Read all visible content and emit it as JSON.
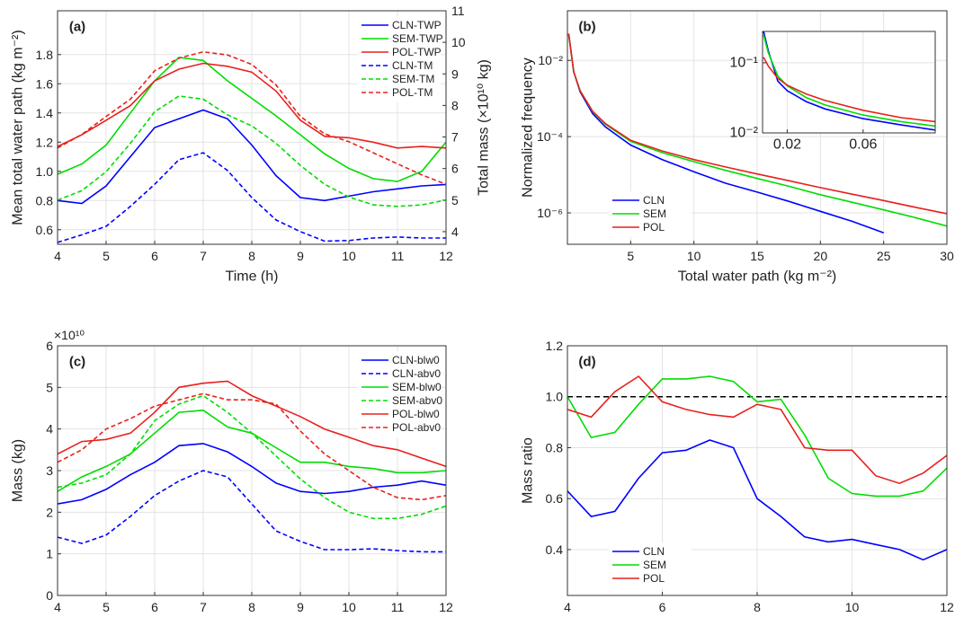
{
  "chart_data": [
    {
      "type": "line",
      "panel_label": "(a)",
      "xlabel": "Time (h)",
      "ylabel": "Mean total water path (kg m⁻²)",
      "y2label": "Total mass (×10¹⁰ kg)",
      "x": [
        4,
        4.5,
        5,
        5.5,
        6,
        6.5,
        7,
        7.5,
        8,
        8.5,
        9,
        9.5,
        10,
        10.5,
        11,
        11.5,
        12
      ],
      "xlim": [
        4,
        12
      ],
      "xticks": [
        4,
        5,
        6,
        7,
        8,
        9,
        10,
        11,
        12
      ],
      "ylim": [
        0.5,
        2.1
      ],
      "yticks": [
        0.6,
        0.8,
        {
          "value": 1,
          "label": "1.0"
        },
        1.2,
        1.4,
        1.6,
        1.8
      ],
      "y2lim": [
        3.6,
        11
      ],
      "y2ticks": [
        4,
        5,
        6,
        7,
        8,
        9,
        10,
        11
      ],
      "grid": true,
      "legend": "upper right",
      "series": [
        {
          "name": "CLN-TWP",
          "color": "#0000ff",
          "style": "solid",
          "values": [
            0.8,
            0.78,
            0.9,
            1.1,
            1.3,
            1.36,
            1.42,
            1.36,
            1.18,
            0.97,
            0.82,
            0.8,
            0.83,
            0.86,
            0.88,
            0.9,
            0.91
          ]
        },
        {
          "name": "SEM-TWP",
          "color": "#00dd00",
          "style": "solid",
          "values": [
            0.98,
            1.05,
            1.18,
            1.4,
            1.62,
            1.78,
            1.76,
            1.62,
            1.5,
            1.38,
            1.25,
            1.12,
            1.02,
            0.95,
            0.93,
            1.0,
            1.2
          ]
        },
        {
          "name": "POL-TWP",
          "color": "#e8201c",
          "style": "solid",
          "values": [
            1.17,
            1.25,
            1.35,
            1.45,
            1.62,
            1.7,
            1.74,
            1.72,
            1.68,
            1.55,
            1.35,
            1.24,
            1.23,
            1.2,
            1.16,
            1.17,
            1.16
          ]
        },
        {
          "name": "CLN-TM",
          "color": "#0000ff",
          "style": "dashed",
          "axis": "y2",
          "values": [
            3.66,
            3.9,
            4.17,
            4.8,
            5.5,
            6.28,
            6.5,
            5.94,
            5.08,
            4.37,
            4.0,
            3.7,
            3.72,
            3.8,
            3.83,
            3.8,
            3.8
          ]
        },
        {
          "name": "SEM-TM",
          "color": "#00dd00",
          "style": "dashed",
          "axis": "y2",
          "values": [
            5.0,
            5.3,
            5.9,
            6.8,
            7.8,
            8.3,
            8.2,
            7.7,
            7.35,
            6.8,
            6.1,
            5.5,
            5.1,
            4.85,
            4.8,
            4.85,
            5.0
          ]
        },
        {
          "name": "POL-TM",
          "color": "#e8201c",
          "style": "dashed",
          "axis": "y2",
          "values": [
            6.65,
            7.08,
            7.65,
            8.2,
            9.1,
            9.5,
            9.7,
            9.6,
            9.3,
            8.65,
            7.65,
            7.1,
            6.85,
            6.5,
            6.15,
            5.8,
            5.5
          ]
        }
      ]
    },
    {
      "type": "line",
      "panel_label": "(b)",
      "xlabel": "Total water path (kg m⁻²)",
      "ylabel": "Normalized frequency",
      "x": [
        0.1,
        0.5,
        1,
        2,
        3,
        5,
        7.5,
        10,
        12.5,
        15,
        17.5,
        20,
        22.5,
        25,
        27.5,
        30
      ],
      "xlim": [
        0,
        30
      ],
      "xticks": [
        5,
        10,
        15,
        20,
        25,
        30
      ],
      "ylog": true,
      "ylim": [
        1.5e-07,
        0.2
      ],
      "yticks": [
        {
          "value": 1e-06,
          "label": "10⁻⁶"
        },
        {
          "value": 0.0001,
          "label": "10⁻⁴"
        },
        {
          "value": 0.01,
          "label": "10⁻²"
        }
      ],
      "grid": true,
      "legend": "lower left",
      "series": [
        {
          "name": "CLN",
          "color": "#0000ff",
          "style": "solid",
          "values": [
            0.05,
            0.005,
            0.0015,
            0.0004,
            0.00018,
            6e-05,
            2.5e-05,
            1.2e-05,
            6e-06,
            3.5e-06,
            2e-06,
            1.1e-06,
            6e-07,
            3e-07,
            null,
            null
          ]
        },
        {
          "name": "SEM",
          "color": "#00dd00",
          "style": "solid",
          "values": [
            0.05,
            0.005,
            0.0016,
            0.00045,
            0.00021,
            7.5e-05,
            3.8e-05,
            2.2e-05,
            1.3e-05,
            8e-06,
            5e-06,
            3e-06,
            1.9e-06,
            1.2e-06,
            7.5e-07,
            4.5e-07
          ]
        },
        {
          "name": "POL",
          "color": "#e8201c",
          "style": "solid",
          "values": [
            0.05,
            0.005,
            0.0016,
            0.00046,
            0.00022,
            8e-05,
            4.2e-05,
            2.5e-05,
            1.6e-05,
            1.05e-05,
            7e-06,
            4.6e-06,
            3.1e-06,
            2.1e-06,
            1.4e-06,
            9.5e-07
          ]
        }
      ],
      "inset": {
        "type": "line",
        "x": [
          0.0075,
          0.01,
          0.015,
          0.02,
          0.03,
          0.04,
          0.06,
          0.08,
          0.098
        ],
        "xlim": [
          0.007,
          0.098
        ],
        "xticks": [
          0.02,
          0.06
        ],
        "ylog": true,
        "ylim": [
          0.01,
          0.28
        ],
        "yticks": [
          {
            "value": 0.01,
            "label": "10⁻²"
          },
          {
            "value": 0.1,
            "label": "10⁻¹"
          }
        ],
        "grid": true,
        "series": [
          {
            "color": "#0000ff",
            "style": "solid",
            "values": [
              0.28,
              0.15,
              0.055,
              0.04,
              0.028,
              0.022,
              0.016,
              0.013,
              0.011
            ]
          },
          {
            "color": "#00dd00",
            "style": "solid",
            "values": [
              0.25,
              0.14,
              0.065,
              0.047,
              0.032,
              0.025,
              0.018,
              0.0145,
              0.0125
            ]
          },
          {
            "color": "#e8201c",
            "style": "solid",
            "values": [
              0.12,
              0.09,
              0.06,
              0.048,
              0.036,
              0.029,
              0.021,
              0.0165,
              0.0145
            ]
          }
        ]
      }
    },
    {
      "type": "line",
      "panel_label": "(c)",
      "xlabel": "Time (h)",
      "ylabel": "Mass (kg)",
      "y_multiplier": "×10¹⁰",
      "x": [
        4,
        4.5,
        5,
        5.5,
        6,
        6.5,
        7,
        7.5,
        8,
        8.5,
        9,
        9.5,
        10,
        10.5,
        11,
        11.5,
        12
      ],
      "xlim": [
        4,
        12
      ],
      "xticks": [
        4,
        5,
        6,
        7,
        8,
        9,
        10,
        11,
        12
      ],
      "ylim": [
        0,
        6
      ],
      "yticks": [
        0,
        1,
        2,
        3,
        4,
        5,
        6
      ],
      "grid": true,
      "legend": "upper right",
      "series": [
        {
          "name": "CLN-blw0",
          "color": "#0000ff",
          "style": "solid",
          "values": [
            2.2,
            2.3,
            2.55,
            2.9,
            3.2,
            3.6,
            3.65,
            3.45,
            3.1,
            2.7,
            2.5,
            2.45,
            2.5,
            2.6,
            2.65,
            2.75,
            2.65
          ]
        },
        {
          "name": "CLN-abv0",
          "color": "#0000ff",
          "style": "dashed",
          "values": [
            1.4,
            1.25,
            1.45,
            1.9,
            2.4,
            2.75,
            3.0,
            2.85,
            2.2,
            1.55,
            1.3,
            1.1,
            1.1,
            1.12,
            1.08,
            1.05,
            1.05
          ]
        },
        {
          "name": "SEM-blw0",
          "color": "#00dd00",
          "style": "solid",
          "values": [
            2.5,
            2.85,
            3.1,
            3.4,
            3.9,
            4.4,
            4.45,
            4.05,
            3.9,
            3.55,
            3.2,
            3.2,
            3.1,
            3.05,
            2.95,
            2.95,
            3.0
          ]
        },
        {
          "name": "SEM-abv0",
          "color": "#00dd00",
          "style": "dashed",
          "values": [
            2.6,
            2.7,
            2.9,
            3.4,
            4.2,
            4.6,
            4.8,
            4.4,
            3.9,
            3.35,
            2.8,
            2.35,
            2.0,
            1.85,
            1.85,
            1.95,
            2.15
          ]
        },
        {
          "name": "POL-blw0",
          "color": "#e8201c",
          "style": "solid",
          "values": [
            3.4,
            3.7,
            3.75,
            3.9,
            4.4,
            5.0,
            5.1,
            5.15,
            4.8,
            4.55,
            4.3,
            4.0,
            3.8,
            3.6,
            3.5,
            3.3,
            3.1
          ]
        },
        {
          "name": "POL-abv0",
          "color": "#e8201c",
          "style": "dashed",
          "values": [
            3.2,
            3.5,
            4.0,
            4.25,
            4.55,
            4.7,
            4.85,
            4.7,
            4.7,
            4.6,
            3.95,
            3.4,
            3.0,
            2.6,
            2.35,
            2.3,
            2.4
          ]
        }
      ]
    },
    {
      "type": "line",
      "panel_label": "(d)",
      "xlabel": "Time (h)",
      "ylabel": "Mass ratio",
      "x": [
        4,
        4.5,
        5,
        5.5,
        6,
        6.5,
        7,
        7.5,
        8,
        8.5,
        9,
        9.5,
        10,
        10.5,
        11,
        11.5,
        12
      ],
      "xlim": [
        4,
        12
      ],
      "xticks": [
        4,
        6,
        8,
        10,
        12
      ],
      "ylim": [
        0.22,
        1.2
      ],
      "yticks": [
        0.4,
        0.6,
        0.8,
        {
          "value": 1,
          "label": "1.0"
        },
        1.2
      ],
      "hline": 1,
      "grid": true,
      "legend": "lower left",
      "series": [
        {
          "name": "CLN",
          "color": "#0000ff",
          "style": "solid",
          "values": [
            0.63,
            0.53,
            0.55,
            0.68,
            0.78,
            0.79,
            0.83,
            0.8,
            0.6,
            0.53,
            0.45,
            0.43,
            0.44,
            0.42,
            0.4,
            0.36,
            0.4
          ]
        },
        {
          "name": "SEM",
          "color": "#00dd00",
          "style": "solid",
          "values": [
            1.0,
            0.84,
            0.86,
            0.97,
            1.07,
            1.07,
            1.08,
            1.06,
            0.98,
            0.99,
            0.85,
            0.68,
            0.62,
            0.61,
            0.61,
            0.63,
            0.72
          ]
        },
        {
          "name": "POL",
          "color": "#e8201c",
          "style": "solid",
          "values": [
            0.95,
            0.92,
            1.02,
            1.08,
            0.98,
            0.95,
            0.93,
            0.92,
            0.97,
            0.95,
            0.8,
            0.79,
            0.79,
            0.69,
            0.66,
            0.7,
            0.77
          ]
        }
      ]
    }
  ]
}
